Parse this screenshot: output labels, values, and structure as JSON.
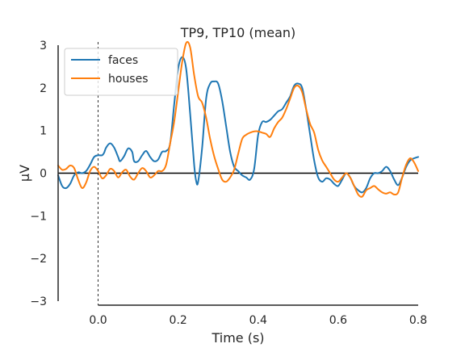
{
  "chart_data": {
    "type": "line",
    "title": "TP9, TP10 (mean)",
    "xlabel": "Time (s)",
    "ylabel": "µV",
    "xlim": [
      -0.1,
      0.8
    ],
    "ylim": [
      -3,
      3
    ],
    "x_ticks": [
      0.0,
      0.2,
      0.4,
      0.6,
      0.8
    ],
    "x_tick_labels": [
      "0.0",
      "0.2",
      "0.4",
      "0.6",
      "0.8"
    ],
    "y_ticks": [
      -3,
      -2,
      -1,
      0,
      1,
      2,
      3
    ],
    "y_tick_labels": [
      "−3",
      "−2",
      "−1",
      "0",
      "1",
      "2",
      "3"
    ],
    "grid": false,
    "legend_position": "top-left",
    "zero_line": true,
    "event_marker_x": 0.0,
    "series": [
      {
        "name": "faces",
        "color": "#1f77b4",
        "points": [
          [
            -0.1,
            -0.05
          ],
          [
            -0.09,
            -0.3
          ],
          [
            -0.08,
            -0.35
          ],
          [
            -0.07,
            -0.25
          ],
          [
            -0.06,
            -0.05
          ],
          [
            -0.05,
            0.02
          ],
          [
            -0.04,
            0.0
          ],
          [
            -0.03,
            0.05
          ],
          [
            -0.02,
            0.2
          ],
          [
            -0.01,
            0.38
          ],
          [
            0.0,
            0.42
          ],
          [
            0.01,
            0.42
          ],
          [
            0.015,
            0.48
          ],
          [
            0.02,
            0.6
          ],
          [
            0.03,
            0.7
          ],
          [
            0.04,
            0.6
          ],
          [
            0.05,
            0.38
          ],
          [
            0.055,
            0.28
          ],
          [
            0.065,
            0.4
          ],
          [
            0.075,
            0.58
          ],
          [
            0.085,
            0.5
          ],
          [
            0.09,
            0.28
          ],
          [
            0.1,
            0.28
          ],
          [
            0.11,
            0.42
          ],
          [
            0.12,
            0.52
          ],
          [
            0.13,
            0.38
          ],
          [
            0.14,
            0.28
          ],
          [
            0.15,
            0.32
          ],
          [
            0.16,
            0.5
          ],
          [
            0.17,
            0.52
          ],
          [
            0.18,
            0.7
          ],
          [
            0.19,
            1.6
          ],
          [
            0.2,
            2.45
          ],
          [
            0.21,
            2.72
          ],
          [
            0.22,
            2.45
          ],
          [
            0.23,
            1.4
          ],
          [
            0.24,
            0.2
          ],
          [
            0.245,
            -0.18
          ],
          [
            0.25,
            -0.2
          ],
          [
            0.26,
            0.6
          ],
          [
            0.27,
            1.75
          ],
          [
            0.28,
            2.1
          ],
          [
            0.29,
            2.15
          ],
          [
            0.3,
            2.1
          ],
          [
            0.31,
            1.7
          ],
          [
            0.32,
            1.1
          ],
          [
            0.33,
            0.5
          ],
          [
            0.34,
            0.15
          ],
          [
            0.35,
            0.05
          ],
          [
            0.36,
            -0.05
          ],
          [
            0.37,
            -0.1
          ],
          [
            0.38,
            -0.15
          ],
          [
            0.39,
            0.1
          ],
          [
            0.4,
            0.9
          ],
          [
            0.41,
            1.2
          ],
          [
            0.42,
            1.2
          ],
          [
            0.43,
            1.25
          ],
          [
            0.44,
            1.35
          ],
          [
            0.45,
            1.45
          ],
          [
            0.46,
            1.5
          ],
          [
            0.47,
            1.65
          ],
          [
            0.48,
            1.8
          ],
          [
            0.49,
            2.05
          ],
          [
            0.5,
            2.1
          ],
          [
            0.51,
            2.0
          ],
          [
            0.52,
            1.5
          ],
          [
            0.53,
            0.9
          ],
          [
            0.54,
            0.3
          ],
          [
            0.55,
            -0.1
          ],
          [
            0.56,
            -0.2
          ],
          [
            0.57,
            -0.12
          ],
          [
            0.58,
            -0.15
          ],
          [
            0.59,
            -0.25
          ],
          [
            0.6,
            -0.3
          ],
          [
            0.61,
            -0.15
          ],
          [
            0.62,
            0.0
          ],
          [
            0.63,
            -0.1
          ],
          [
            0.64,
            -0.3
          ],
          [
            0.65,
            -0.4
          ],
          [
            0.66,
            -0.45
          ],
          [
            0.67,
            -0.35
          ],
          [
            0.68,
            -0.12
          ],
          [
            0.69,
            0.0
          ],
          [
            0.7,
            0.0
          ],
          [
            0.71,
            0.05
          ],
          [
            0.72,
            0.15
          ],
          [
            0.73,
            0.05
          ],
          [
            0.74,
            -0.15
          ],
          [
            0.75,
            -0.28
          ],
          [
            0.76,
            -0.1
          ],
          [
            0.77,
            0.15
          ],
          [
            0.78,
            0.3
          ],
          [
            0.79,
            0.35
          ],
          [
            0.8,
            0.38
          ]
        ]
      },
      {
        "name": "houses",
        "color": "#ff7f0e",
        "points": [
          [
            -0.1,
            0.18
          ],
          [
            -0.09,
            0.08
          ],
          [
            -0.08,
            0.1
          ],
          [
            -0.07,
            0.18
          ],
          [
            -0.06,
            0.12
          ],
          [
            -0.05,
            -0.15
          ],
          [
            -0.04,
            -0.35
          ],
          [
            -0.03,
            -0.22
          ],
          [
            -0.02,
            0.05
          ],
          [
            -0.01,
            0.15
          ],
          [
            0.0,
            0.05
          ],
          [
            0.01,
            -0.12
          ],
          [
            0.02,
            -0.05
          ],
          [
            0.03,
            0.1
          ],
          [
            0.04,
            0.05
          ],
          [
            0.05,
            -0.1
          ],
          [
            0.06,
            0.02
          ],
          [
            0.07,
            0.08
          ],
          [
            0.08,
            -0.08
          ],
          [
            0.09,
            -0.15
          ],
          [
            0.1,
            0.0
          ],
          [
            0.11,
            0.12
          ],
          [
            0.12,
            0.05
          ],
          [
            0.13,
            -0.1
          ],
          [
            0.14,
            -0.05
          ],
          [
            0.15,
            0.05
          ],
          [
            0.16,
            0.05
          ],
          [
            0.17,
            0.2
          ],
          [
            0.18,
            0.7
          ],
          [
            0.19,
            1.2
          ],
          [
            0.2,
            1.9
          ],
          [
            0.21,
            2.6
          ],
          [
            0.22,
            3.05
          ],
          [
            0.23,
            2.95
          ],
          [
            0.24,
            2.3
          ],
          [
            0.25,
            1.8
          ],
          [
            0.26,
            1.65
          ],
          [
            0.27,
            1.3
          ],
          [
            0.28,
            0.8
          ],
          [
            0.29,
            0.4
          ],
          [
            0.3,
            0.1
          ],
          [
            0.31,
            -0.15
          ],
          [
            0.32,
            -0.2
          ],
          [
            0.33,
            -0.1
          ],
          [
            0.34,
            0.08
          ],
          [
            0.35,
            0.45
          ],
          [
            0.36,
            0.8
          ],
          [
            0.37,
            0.9
          ],
          [
            0.38,
            0.95
          ],
          [
            0.39,
            0.98
          ],
          [
            0.4,
            0.98
          ],
          [
            0.41,
            0.95
          ],
          [
            0.42,
            0.92
          ],
          [
            0.43,
            0.85
          ],
          [
            0.44,
            1.05
          ],
          [
            0.45,
            1.2
          ],
          [
            0.46,
            1.3
          ],
          [
            0.47,
            1.5
          ],
          [
            0.48,
            1.75
          ],
          [
            0.49,
            2.0
          ],
          [
            0.5,
            2.05
          ],
          [
            0.51,
            1.9
          ],
          [
            0.52,
            1.5
          ],
          [
            0.53,
            1.15
          ],
          [
            0.54,
            0.95
          ],
          [
            0.55,
            0.55
          ],
          [
            0.56,
            0.3
          ],
          [
            0.57,
            0.15
          ],
          [
            0.58,
            0.0
          ],
          [
            0.59,
            -0.15
          ],
          [
            0.6,
            -0.2
          ],
          [
            0.61,
            -0.1
          ],
          [
            0.62,
            0.0
          ],
          [
            0.63,
            -0.1
          ],
          [
            0.64,
            -0.3
          ],
          [
            0.65,
            -0.5
          ],
          [
            0.66,
            -0.55
          ],
          [
            0.67,
            -0.4
          ],
          [
            0.68,
            -0.35
          ],
          [
            0.69,
            -0.3
          ],
          [
            0.7,
            -0.38
          ],
          [
            0.71,
            -0.45
          ],
          [
            0.72,
            -0.48
          ],
          [
            0.73,
            -0.45
          ],
          [
            0.74,
            -0.5
          ],
          [
            0.75,
            -0.45
          ],
          [
            0.76,
            -0.1
          ],
          [
            0.77,
            0.2
          ],
          [
            0.78,
            0.35
          ],
          [
            0.79,
            0.25
          ],
          [
            0.8,
            0.05
          ]
        ]
      }
    ]
  }
}
